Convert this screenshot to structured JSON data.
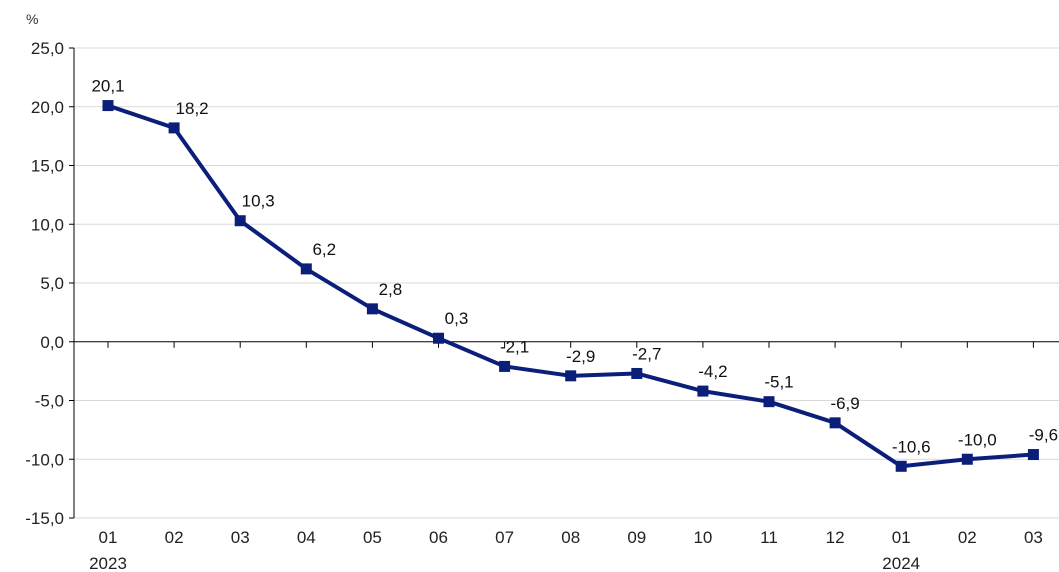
{
  "chart_data": {
    "type": "line",
    "unit": "%",
    "categories": [
      "01",
      "02",
      "03",
      "04",
      "05",
      "06",
      "07",
      "08",
      "09",
      "10",
      "11",
      "12",
      "01",
      "02",
      "03"
    ],
    "year_labels": [
      {
        "index": 0,
        "label": "2023"
      },
      {
        "index": 12,
        "label": "2024"
      }
    ],
    "series": [
      {
        "values": [
          20.1,
          18.2,
          10.3,
          6.2,
          2.8,
          0.3,
          -2.1,
          -2.9,
          -2.7,
          -4.2,
          -5.1,
          -6.9,
          -10.6,
          -10.0,
          -9.6
        ],
        "data_labels": [
          "20,1",
          "18,2",
          "10,3",
          "6,2",
          "2,8",
          "0,3",
          "-2,1",
          "-2,9",
          "-2,7",
          "-4,2",
          "-5,1",
          "-6,9",
          "-10,6",
          "-10,0",
          "-9,6"
        ],
        "color": "#0b1f7a"
      }
    ],
    "ylim": [
      -15,
      25
    ],
    "yticks": [
      25,
      20,
      15,
      10,
      5,
      0,
      -5,
      -10,
      -15
    ],
    "ytick_labels": [
      "25,0",
      "20,0",
      "15,0",
      "10,0",
      "5,0",
      "0,0",
      "-5,0",
      "-10,0",
      "-15,0"
    ],
    "grid": true,
    "grid_color": "#d9d9d9",
    "axis_color": "#000000"
  }
}
